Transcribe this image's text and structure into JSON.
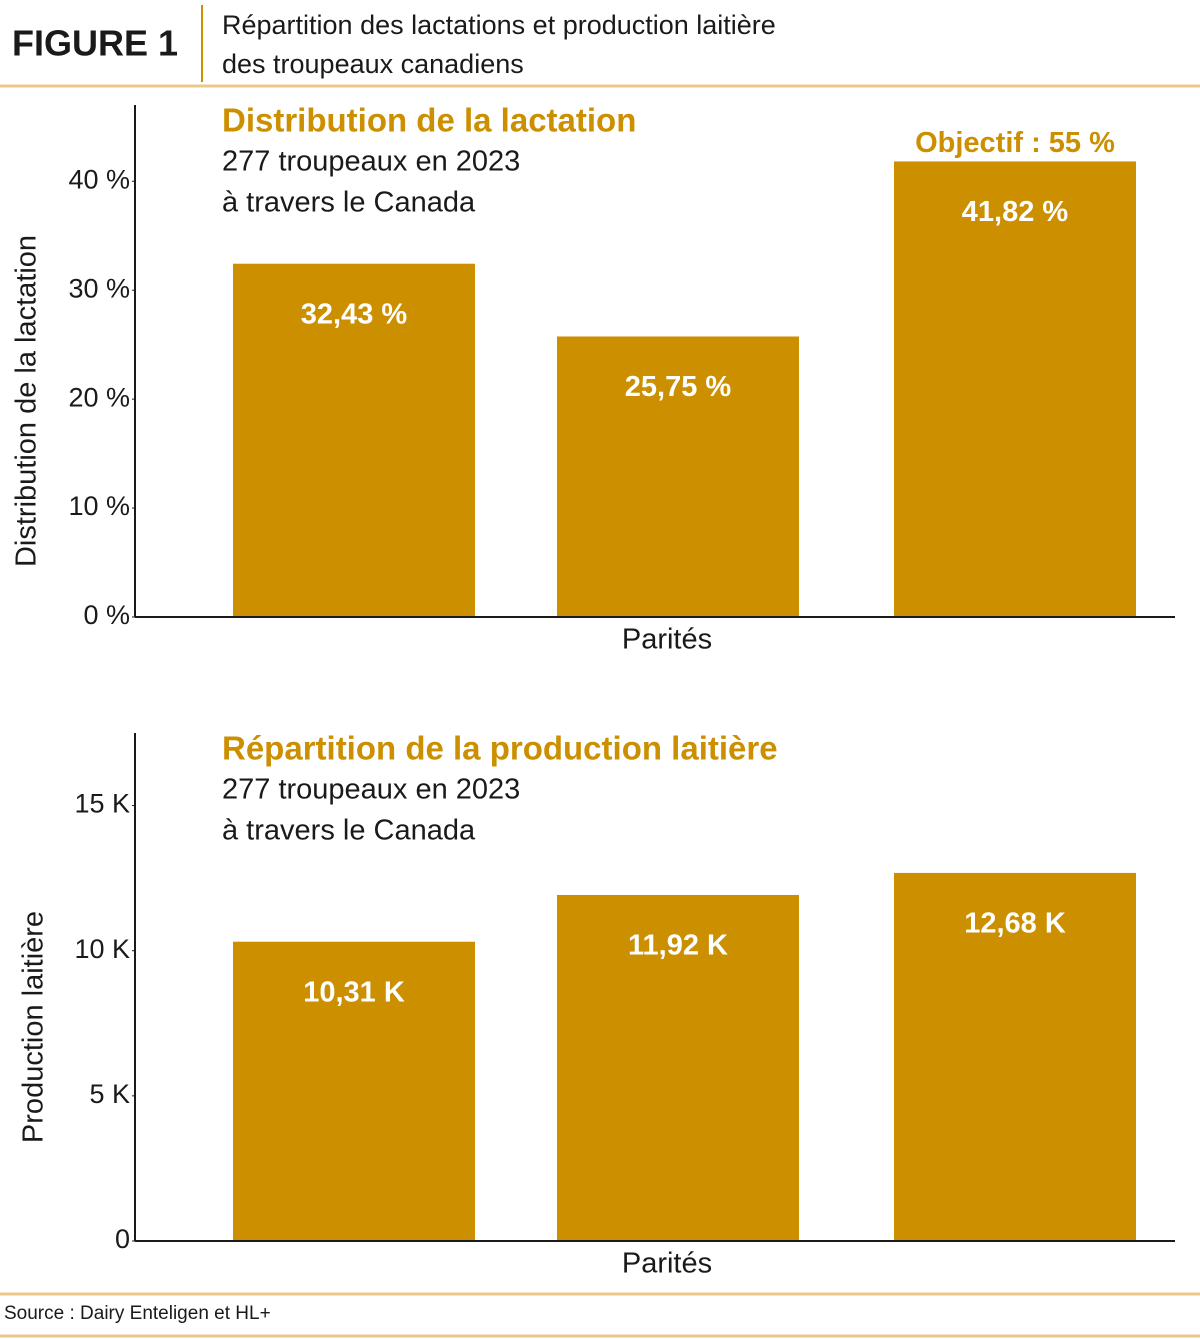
{
  "header": {
    "label": "FIGURE 1",
    "title": [
      "Répartition des lactations et production laitière",
      "des troupeaux canadiens"
    ]
  },
  "source": "Source : Dairy Enteligen et HL+",
  "chart_data": [
    {
      "type": "bar",
      "title": "Distribution de la lactation",
      "subtitle": [
        "277 troupeaux en 2023",
        "à travers le Canada"
      ],
      "y_label": "Distribution de la lactation",
      "x_label": "Parités",
      "categories": [
        null,
        null,
        null
      ],
      "values": [
        32.43,
        25.75,
        41.82
      ],
      "value_labels": [
        "32,43 %",
        "25,75 %",
        "41,82 %"
      ],
      "annotation": "Objectif : 55 %",
      "color": "#cc8f00",
      "ylim": [
        0,
        47
      ],
      "yticks": [
        {
          "value": 0,
          "label": "0 %"
        },
        {
          "value": 10,
          "label": "10 %"
        },
        {
          "value": 20,
          "label": "20 %"
        },
        {
          "value": 30,
          "label": "30 %"
        },
        {
          "value": 40,
          "label": "40 %"
        }
      ]
    },
    {
      "type": "bar",
      "title": "Répartition de la production laitière",
      "subtitle": [
        "277 troupeaux en 2023",
        "à travers le Canada"
      ],
      "y_label": "Production laitière",
      "x_label": "Parités",
      "categories": [
        null,
        null,
        null
      ],
      "values": [
        10.31,
        11.92,
        12.68
      ],
      "value_labels": [
        "10,31 K",
        "11,92 K",
        "12,68 K"
      ],
      "color": "#cc8f00",
      "ylim": [
        0,
        17.5
      ],
      "yticks": [
        0,
        {
          "value": 5,
          "label": "5 K"
        },
        {
          "value": 10,
          "label": "10 K"
        },
        {
          "value": 15,
          "label": "15 K"
        }
      ]
    }
  ]
}
